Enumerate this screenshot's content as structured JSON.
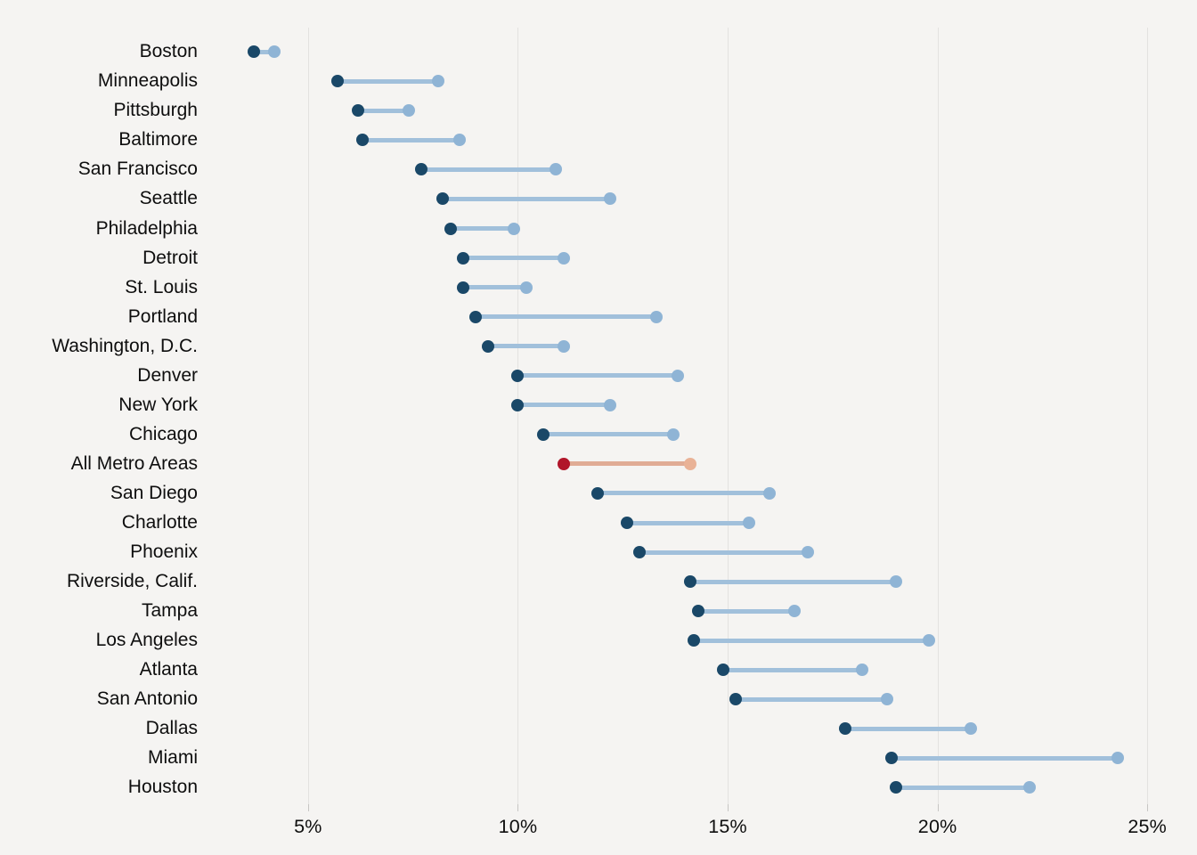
{
  "chart_data": {
    "type": "dumbbell",
    "title": "",
    "x_axis": {
      "tick_labels": [
        "5%",
        "10%",
        "15%",
        "20%",
        "25%"
      ],
      "tick_values": [
        5,
        10,
        15,
        20,
        25
      ],
      "range": [
        2.75,
        25.9
      ],
      "unit": "percent",
      "grid": true
    },
    "legend": "none",
    "rows": [
      {
        "label": "Boston",
        "start": 3.7,
        "end": 4.2,
        "highlight": false
      },
      {
        "label": "Minneapolis",
        "start": 5.7,
        "end": 8.1,
        "highlight": false
      },
      {
        "label": "Pittsburgh",
        "start": 6.2,
        "end": 7.4,
        "highlight": false
      },
      {
        "label": "Baltimore",
        "start": 6.3,
        "end": 8.6,
        "highlight": false
      },
      {
        "label": "San Francisco",
        "start": 7.7,
        "end": 10.9,
        "highlight": false
      },
      {
        "label": "Seattle",
        "start": 8.2,
        "end": 12.2,
        "highlight": false
      },
      {
        "label": "Philadelphia",
        "start": 8.4,
        "end": 9.9,
        "highlight": false
      },
      {
        "label": "Detroit",
        "start": 8.7,
        "end": 11.1,
        "highlight": false
      },
      {
        "label": "St. Louis",
        "start": 8.7,
        "end": 10.2,
        "highlight": false
      },
      {
        "label": "Portland",
        "start": 9.0,
        "end": 13.3,
        "highlight": false
      },
      {
        "label": "Washington, D.C.",
        "start": 9.3,
        "end": 11.1,
        "highlight": false
      },
      {
        "label": "Denver",
        "start": 10.0,
        "end": 13.8,
        "highlight": false
      },
      {
        "label": "New York",
        "start": 10.0,
        "end": 12.2,
        "highlight": false
      },
      {
        "label": "Chicago",
        "start": 10.6,
        "end": 13.7,
        "highlight": false
      },
      {
        "label": "All Metro Areas",
        "start": 11.1,
        "end": 14.1,
        "highlight": true
      },
      {
        "label": "San Diego",
        "start": 11.9,
        "end": 16.0,
        "highlight": false
      },
      {
        "label": "Charlotte",
        "start": 12.6,
        "end": 15.5,
        "highlight": false
      },
      {
        "label": "Phoenix",
        "start": 12.9,
        "end": 16.9,
        "highlight": false
      },
      {
        "label": "Riverside, Calif.",
        "start": 14.1,
        "end": 19.0,
        "highlight": false
      },
      {
        "label": "Tampa",
        "start": 14.3,
        "end": 16.6,
        "highlight": false
      },
      {
        "label": "Los Angeles",
        "start": 14.2,
        "end": 19.8,
        "highlight": false
      },
      {
        "label": "Atlanta",
        "start": 14.9,
        "end": 18.2,
        "highlight": false
      },
      {
        "label": "San Antonio",
        "start": 15.2,
        "end": 18.8,
        "highlight": false
      },
      {
        "label": "Dallas",
        "start": 17.8,
        "end": 20.8,
        "highlight": false
      },
      {
        "label": "Miami",
        "start": 18.9,
        "end": 24.3,
        "highlight": false
      },
      {
        "label": "Houston",
        "start": 19.0,
        "end": 22.2,
        "highlight": false
      }
    ],
    "colors": {
      "background": "#f5f4f2",
      "start_dot": "#1a4868",
      "end_dot": "#8fb4d5",
      "connector": "#a1c0db",
      "highlight_start_dot": "#b1162a",
      "highlight_end_dot": "#e9b296",
      "highlight_connector": "#e0ac95",
      "gridline": "#e3e2e0",
      "tick": "#c7c6c4",
      "text": "#0e0e0e"
    }
  }
}
